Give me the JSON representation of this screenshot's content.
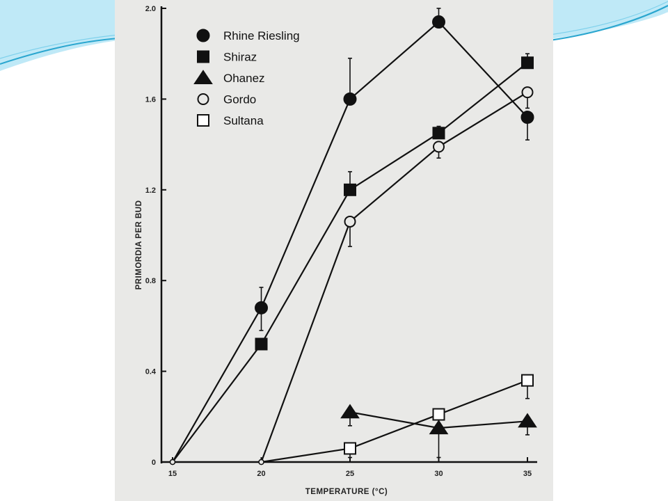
{
  "colors": {
    "panel": "#e9e9e7",
    "ink": "#111111",
    "swoosh_light": "#bfe9f7",
    "swoosh_dark": "#2aa6cf"
  },
  "chart_data": {
    "type": "line",
    "title": "",
    "xlabel": "TEMPERATURE (°C)",
    "ylabel": "PRIMORDIA PER BUD",
    "x": [
      15,
      20,
      25,
      30,
      35
    ],
    "x_ticks": [
      "15",
      "20",
      "25",
      "30",
      "35"
    ],
    "y_ticks": [
      "0",
      "0.4",
      "0.8",
      "1.2",
      "1.6",
      "2.0"
    ],
    "xlim": [
      15,
      35
    ],
    "ylim": [
      0,
      2.0
    ],
    "grid": false,
    "legend_position": "top-left",
    "series": [
      {
        "name": "Rhine Riesling",
        "marker": "filled-circle",
        "points": [
          [
            15,
            0
          ],
          [
            20,
            0.68
          ],
          [
            25,
            1.6
          ],
          [
            30,
            1.94
          ],
          [
            35,
            1.52
          ]
        ],
        "error_bars": [
          [
            20,
            0.58,
            0.77
          ],
          [
            25,
            1.6,
            1.78
          ],
          [
            30,
            1.94,
            2.0
          ],
          [
            35,
            1.42,
            1.52
          ]
        ]
      },
      {
        "name": "Shiraz",
        "marker": "filled-square",
        "points": [
          [
            15,
            0
          ],
          [
            20,
            0.52
          ],
          [
            25,
            1.2
          ],
          [
            30,
            1.45
          ],
          [
            35,
            1.76
          ]
        ],
        "error_bars": [
          [
            25,
            1.2,
            1.28
          ],
          [
            30,
            1.45,
            1.48
          ],
          [
            35,
            1.76,
            1.8
          ]
        ]
      },
      {
        "name": "Ohanez",
        "marker": "filled-triangle",
        "points": [
          [
            25,
            0.22
          ],
          [
            30,
            0.15
          ],
          [
            35,
            0.18
          ]
        ],
        "error_bars": [
          [
            25,
            0.16,
            0.22
          ],
          [
            30,
            0.02,
            0.15
          ],
          [
            35,
            0.12,
            0.18
          ]
        ]
      },
      {
        "name": "Gordo",
        "marker": "open-circle",
        "points": [
          [
            20,
            0
          ],
          [
            25,
            1.06
          ],
          [
            30,
            1.39
          ],
          [
            35,
            1.63
          ]
        ],
        "error_bars": [
          [
            25,
            0.95,
            1.06
          ],
          [
            30,
            1.34,
            1.39
          ],
          [
            35,
            1.56,
            1.63
          ]
        ]
      },
      {
        "name": "Sultana",
        "marker": "open-square",
        "points": [
          [
            20,
            0
          ],
          [
            25,
            0.06
          ],
          [
            30,
            0.21
          ],
          [
            35,
            0.36
          ]
        ],
        "error_bars": [
          [
            25,
            0.02,
            0.06
          ],
          [
            35,
            0.28,
            0.36
          ]
        ]
      }
    ]
  }
}
